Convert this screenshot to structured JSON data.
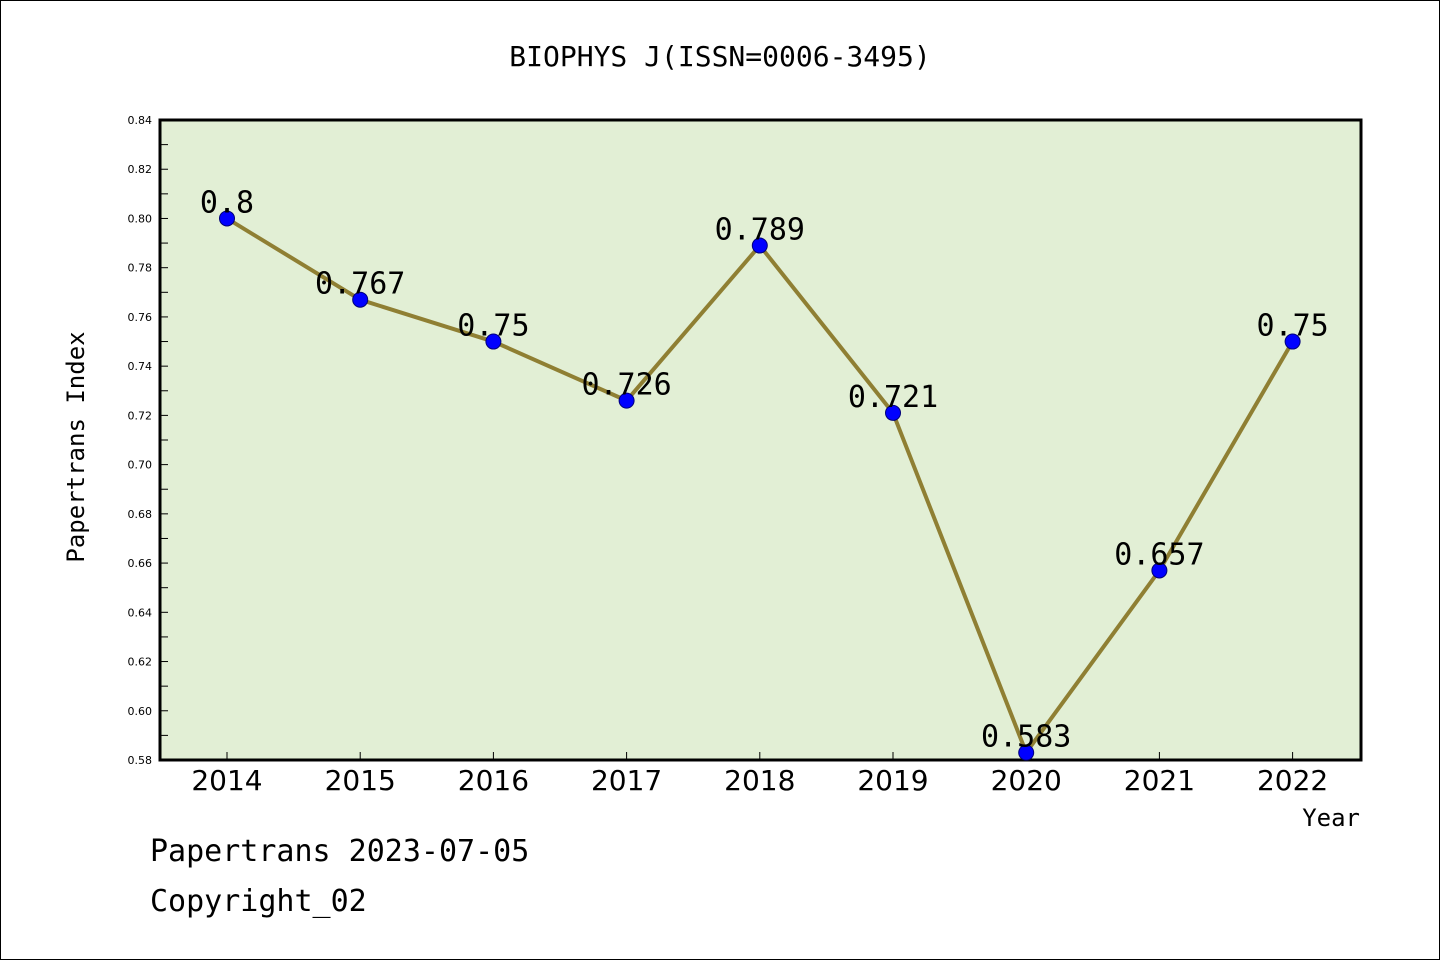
{
  "chart_data": {
    "type": "line",
    "title": "BIOPHYS J(ISSN=0006-3495)",
    "xlabel": "Year",
    "ylabel": "Papertrans Index",
    "categories": [
      "2014",
      "2015",
      "2016",
      "2017",
      "2018",
      "2019",
      "2020",
      "2021",
      "2022"
    ],
    "values": [
      0.8,
      0.767,
      0.75,
      0.726,
      0.789,
      0.721,
      0.583,
      0.657,
      0.75
    ],
    "value_labels": [
      "0.8",
      "0.767",
      "0.75",
      "0.726",
      "0.789",
      "0.721",
      "0.583",
      "0.657",
      "0.75"
    ],
    "ylim": [
      0.58,
      0.84
    ],
    "yticks": [
      "0.58",
      "0.60",
      "0.62",
      "0.64",
      "0.66",
      "0.68",
      "0.70",
      "0.72",
      "0.74",
      "0.76",
      "0.78",
      "0.80",
      "0.82",
      "0.84"
    ],
    "grid": false,
    "colors": {
      "plot_background": "#e2efd5",
      "line": "#8f7f33",
      "marker": "#0000ff"
    }
  },
  "footer": {
    "line1": "Papertrans 2023-07-05",
    "line2": "Copyright_02"
  }
}
